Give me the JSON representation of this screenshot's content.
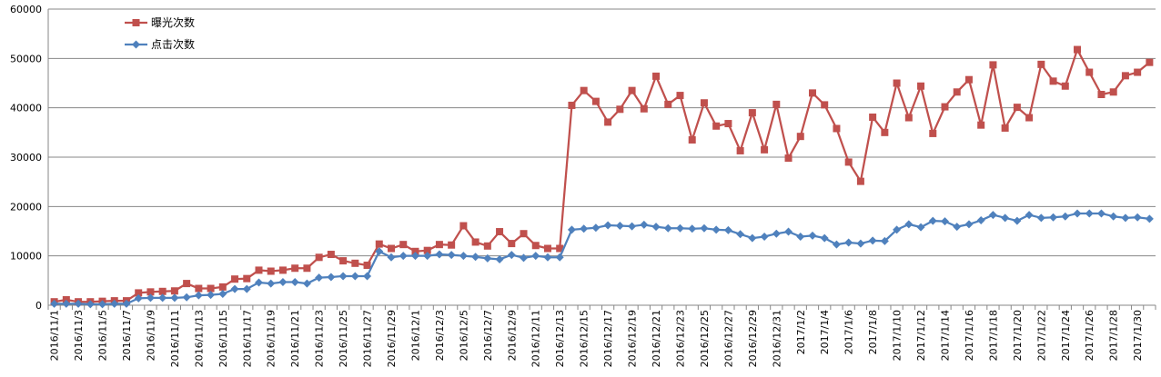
{
  "chart_data": {
    "type": "line",
    "title": "",
    "xlabel": "",
    "ylabel": "",
    "ylim": [
      0,
      60000
    ],
    "yticks": [
      0,
      10000,
      20000,
      30000,
      40000,
      50000,
      60000
    ],
    "grid": "horizontal",
    "legend_position": "top-left",
    "x": [
      "2016/11/1",
      "2016/11/2",
      "2016/11/3",
      "2016/11/4",
      "2016/11/5",
      "2016/11/6",
      "2016/11/7",
      "2016/11/8",
      "2016/11/9",
      "2016/11/10",
      "2016/11/11",
      "2016/11/12",
      "2016/11/13",
      "2016/11/14",
      "2016/11/15",
      "2016/11/16",
      "2016/11/17",
      "2016/11/18",
      "2016/11/19",
      "2016/11/20",
      "2016/11/21",
      "2016/11/22",
      "2016/11/23",
      "2016/11/24",
      "2016/11/25",
      "2016/11/26",
      "2016/11/27",
      "2016/11/28",
      "2016/11/29",
      "2016/11/30",
      "2016/12/1",
      "2016/12/2",
      "2016/12/3",
      "2016/12/4",
      "2016/12/5",
      "2016/12/6",
      "2016/12/7",
      "2016/12/8",
      "2016/12/9",
      "2016/12/10",
      "2016/12/11",
      "2016/12/12",
      "2016/12/13",
      "2016/12/14",
      "2016/12/15",
      "2016/12/16",
      "2016/12/17",
      "2016/12/18",
      "2016/12/19",
      "2016/12/20",
      "2016/12/21",
      "2016/12/22",
      "2016/12/23",
      "2016/12/24",
      "2016/12/25",
      "2016/12/26",
      "2016/12/27",
      "2016/12/28",
      "2016/12/29",
      "2016/12/30",
      "2016/12/31",
      "2017/1/1",
      "2017/1/2",
      "2017/1/3",
      "2017/1/4",
      "2017/1/5",
      "2017/1/6",
      "2017/1/7",
      "2017/1/8",
      "2017/1/9",
      "2017/1/10",
      "2017/1/11",
      "2017/1/12",
      "2017/1/13",
      "2017/1/14",
      "2017/1/15",
      "2017/1/16",
      "2017/1/17",
      "2017/1/18",
      "2017/1/19",
      "2017/1/20",
      "2017/1/21",
      "2017/1/22",
      "2017/1/23",
      "2017/1/24",
      "2017/1/25",
      "2017/1/26",
      "2017/1/27",
      "2017/1/28",
      "2017/1/29",
      "2017/1/30",
      "2017/1/31"
    ],
    "series": [
      {
        "name": "曝光次数",
        "color": "#C0504D",
        "marker": "square",
        "values": [
          700,
          1100,
          700,
          700,
          800,
          900,
          900,
          2500,
          2700,
          2800,
          2900,
          4400,
          3400,
          3400,
          3700,
          5300,
          5400,
          7100,
          6900,
          7100,
          7500,
          7500,
          9700,
          10300,
          9000,
          8500,
          8100,
          12400,
          11500,
          12300,
          10900,
          11100,
          12300,
          12200,
          16100,
          12800,
          12000,
          14900,
          12500,
          14500,
          12100,
          11500,
          11500,
          40500,
          43500,
          41300,
          37100,
          39700,
          43500,
          39800,
          46400,
          40700,
          42500,
          33500,
          41000,
          36300,
          36800,
          31300,
          39000,
          31500,
          40700,
          29800,
          34200,
          43000,
          40600,
          35800,
          29000,
          25100,
          38100,
          35000,
          45000,
          38000,
          44400,
          34800,
          40200,
          43200,
          45700,
          36500,
          48700,
          35900,
          40100,
          38000,
          48800,
          45400,
          44400,
          51800,
          47200,
          42700,
          43200,
          46500,
          47200,
          49200
        ]
      },
      {
        "name": "点击次数",
        "color": "#4F81BD",
        "marker": "diamond",
        "values": [
          300,
          300,
          300,
          200,
          200,
          300,
          300,
          1400,
          1500,
          1500,
          1500,
          1600,
          2000,
          2100,
          2300,
          3300,
          3300,
          4600,
          4400,
          4700,
          4700,
          4400,
          5600,
          5700,
          5900,
          5900,
          5900,
          10900,
          9700,
          10000,
          10000,
          10000,
          10300,
          10200,
          10000,
          9800,
          9500,
          9300,
          10200,
          9600,
          10000,
          9700,
          9700,
          15300,
          15500,
          15700,
          16200,
          16100,
          16000,
          16300,
          15900,
          15600,
          15600,
          15500,
          15600,
          15300,
          15200,
          14400,
          13600,
          13900,
          14500,
          14900,
          13900,
          14100,
          13600,
          12300,
          12700,
          12500,
          13100,
          13000,
          15300,
          16400,
          15800,
          17100,
          17000,
          15900,
          16400,
          17200,
          18300,
          17700,
          17100,
          18300,
          17700,
          17800,
          18000,
          18600,
          18600,
          18600,
          18000,
          17700,
          17800,
          17500
        ]
      }
    ]
  }
}
